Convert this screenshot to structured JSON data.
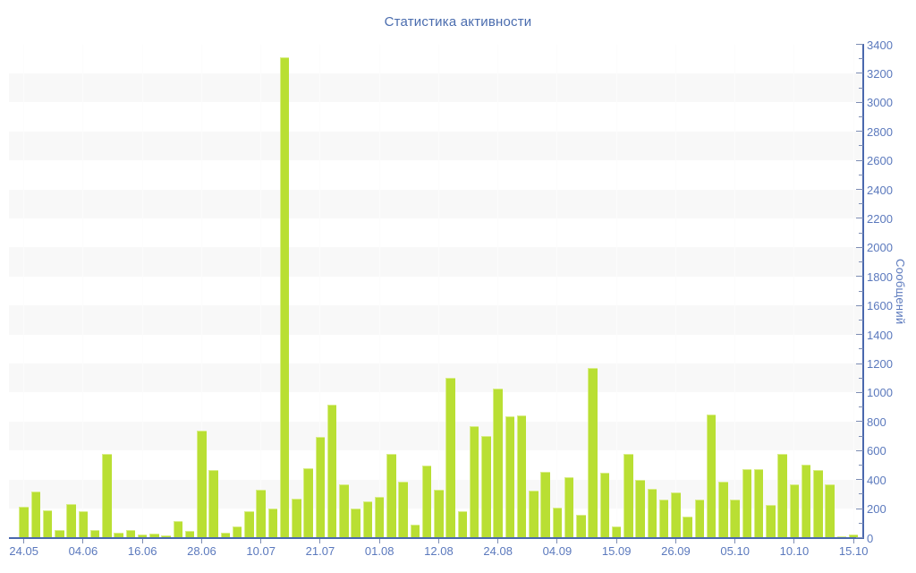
{
  "title": "Статистика активности",
  "chart_data": {
    "type": "bar",
    "title": "Статистика активности",
    "xlabel": "",
    "ylabel": "Сообщений",
    "ylim": [
      0,
      3400
    ],
    "y_major_step": 200,
    "y_minor_step": 100,
    "grid": "horizontal striped bands every 200 units, faint vertical gridlines at labeled dates",
    "legend": "none",
    "x_tick_labels": [
      "24.05",
      "04.06",
      "16.06",
      "28.06",
      "10.07",
      "21.07",
      "01.08",
      "12.08",
      "24.08",
      "04.09",
      "15.09",
      "26.09",
      "05.10",
      "10.10",
      "15.10"
    ],
    "x_label_every_n_bars": 5,
    "values": [
      210,
      320,
      190,
      55,
      230,
      180,
      55,
      580,
      35,
      55,
      20,
      25,
      15,
      115,
      45,
      735,
      465,
      35,
      75,
      185,
      330,
      200,
      3310,
      270,
      480,
      695,
      915,
      370,
      200,
      250,
      280,
      580,
      385,
      90,
      495,
      330,
      1100,
      180,
      770,
      700,
      1030,
      835,
      845,
      325,
      455,
      205,
      415,
      160,
      1170,
      445,
      75,
      575,
      400,
      335,
      265,
      310,
      145,
      265,
      850,
      385,
      260,
      475,
      470,
      225,
      575,
      370,
      505,
      465,
      370,
      10,
      20
    ],
    "colors": {
      "bar": "#b9df33",
      "bar_edge": "#d8ed86",
      "stripe": "#f8f8f8",
      "vgrid": "#fcfcfc",
      "axis": "#4a68ad",
      "tick": "#7d8db4",
      "label": "#5b79bd",
      "title": "#4a6cae",
      "background": "#ffffff"
    }
  }
}
